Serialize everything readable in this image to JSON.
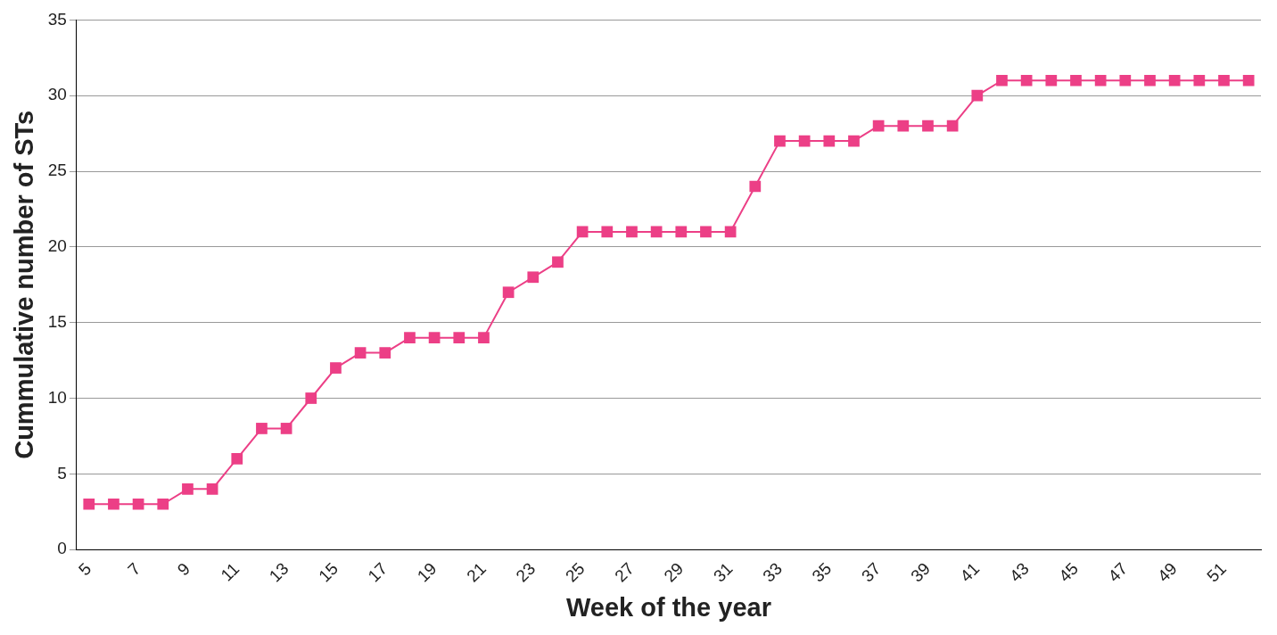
{
  "chart_data": {
    "type": "line",
    "xlabel": "Week of the year",
    "ylabel": "Cummulative number of STs",
    "categories": [
      "5",
      null,
      "7",
      null,
      "9",
      null,
      "11",
      null,
      "13",
      null,
      "15",
      null,
      "17",
      null,
      "19",
      null,
      "21",
      null,
      "23",
      null,
      "25",
      null,
      "27",
      null,
      "29",
      null,
      "31",
      null,
      "33",
      null,
      "35",
      null,
      "37",
      null,
      "39",
      null,
      "41",
      null,
      "43",
      null,
      "45",
      null,
      "47",
      null,
      "49",
      null,
      "51",
      null
    ],
    "series": [
      {
        "color": "#ec3f86",
        "values": [
          3,
          3,
          3,
          3,
          4,
          4,
          6,
          8,
          8,
          10,
          12,
          13,
          13,
          14,
          14,
          14,
          14,
          17,
          18,
          19,
          21,
          21,
          21,
          21,
          21,
          21,
          21,
          24,
          27,
          27,
          27,
          27,
          28,
          28,
          28,
          28,
          30,
          31,
          31,
          31,
          31,
          31,
          31,
          31,
          31,
          31,
          31,
          31
        ]
      }
    ],
    "ylim": [
      0,
      35
    ],
    "yticks": [
      0,
      5,
      10,
      15,
      20,
      25,
      30,
      35
    ],
    "grid": "y",
    "legend": false,
    "marker": "square",
    "line_style": "solid"
  }
}
